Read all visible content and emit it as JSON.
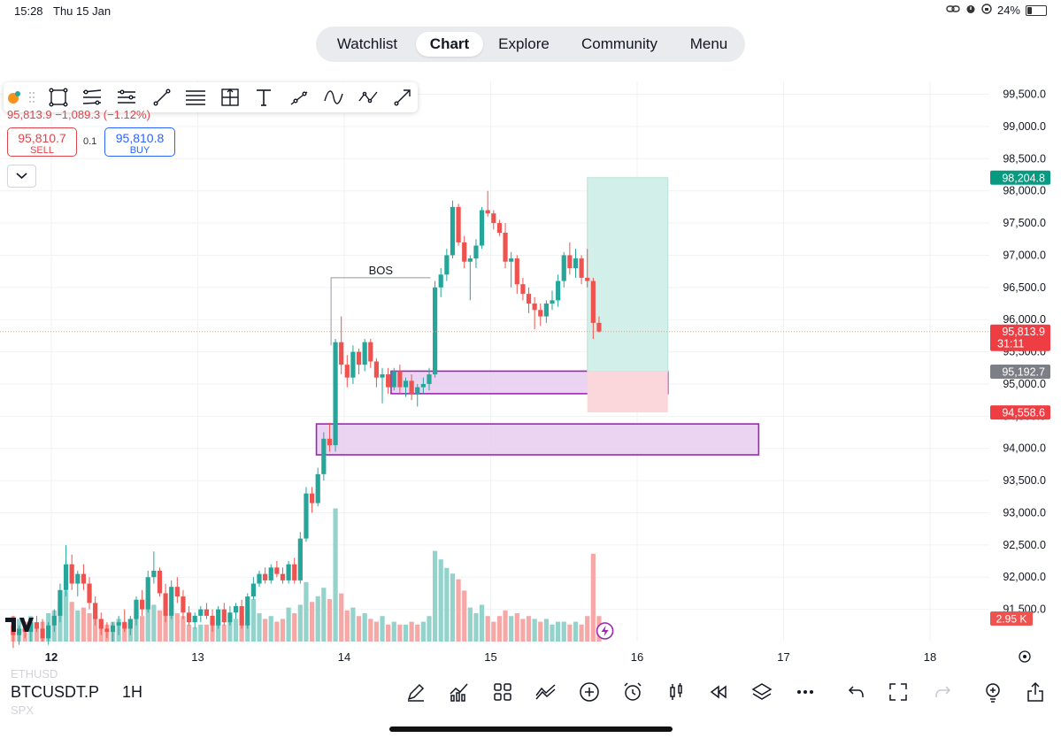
{
  "status_bar": {
    "time": "15:28",
    "date": "Thu 15 Jan",
    "battery": "24%",
    "battery_level": 0.24
  },
  "nav": {
    "tabs": [
      "Watchlist",
      "Chart",
      "Explore",
      "Community",
      "Menu"
    ],
    "active": "Chart"
  },
  "symbol_line": "95,813.9 −1,089.3 (−1.12%)",
  "trade": {
    "sell_value": "95,810.7",
    "sell_label": "SELL",
    "qty": "0.1",
    "buy_value": "95,810.8",
    "buy_label": "BUY"
  },
  "drawing_tools": [
    "trend-line",
    "rectangle",
    "parallel-channel",
    "disjoint-channel",
    "ray",
    "horizontal-lines",
    "fib-box",
    "text",
    "path",
    "curve",
    "polyline",
    "arrow"
  ],
  "bottom": {
    "symbol": "BTCUSDT.P",
    "interval": "1H",
    "faded_symbols": [
      "ETHUSD",
      "SPX"
    ],
    "icons": [
      "pencil-icon",
      "indicators-icon",
      "templates-icon",
      "compare-icon",
      "add-icon",
      "alert-icon",
      "candle-type-icon",
      "replay-icon",
      "layers-icon",
      "more-icon",
      "undo-icon",
      "fullscreen-icon",
      "redo-icon",
      "bulb-icon",
      "share-icon"
    ]
  },
  "colors": {
    "up": "#26a69a",
    "down": "#ef5350",
    "volume_up": "#94d2cc",
    "volume_down": "#f5a8a6",
    "zone_fill": "#e6cdee",
    "zone_stroke": "#9c27b0",
    "target": "#d3efe9",
    "stop": "#fbd7dc"
  },
  "chart_data": {
    "type": "candlestick",
    "y_ticks": [
      91500,
      92000,
      92500,
      93000,
      93500,
      94000,
      94500,
      95000,
      95500,
      96000,
      96500,
      97000,
      97500,
      98000,
      98500,
      99000,
      99500
    ],
    "y_tick_labels": [
      "91,500.0",
      "92,000.0",
      "92,500.0",
      "93,000.0",
      "93,500.0",
      "94,000.0",
      "94,500.0",
      "95,000.0",
      "95,500.0",
      "96,000.0",
      "96,500.0",
      "97,000.0",
      "97,500.0",
      "98,000.0",
      "98,500.0",
      "99,000.0",
      "99,500.0"
    ],
    "ylim": [
      91000,
      99700
    ],
    "x_ticks": [
      12,
      13,
      14,
      15,
      16,
      17,
      18
    ],
    "xlim": [
      11.97,
      18.84
    ],
    "price_labels": [
      {
        "value": 98204.8,
        "text": "98,204.8",
        "color": "#089981"
      },
      {
        "value": 95813.9,
        "text": "95,813.9",
        "sub": "31:11",
        "color": "#ef3e43"
      },
      {
        "value": 95192.7,
        "text": "95,192.7",
        "color": "#7c7f85"
      },
      {
        "value": 94558.6,
        "text": "94,558.6",
        "color": "#ef3e43"
      }
    ],
    "volume_label": "2.95 K",
    "last_price": 95813.9,
    "bos": {
      "label": "BOS",
      "price": 96650,
      "from": 13.91,
      "to": 14.59
    },
    "zones": [
      {
        "from": 14.32,
        "to": 16.21,
        "low": 94850,
        "high": 95200
      },
      {
        "from": 13.81,
        "to": 16.83,
        "low": 93900,
        "high": 94380
      }
    ],
    "position": {
      "from": 15.66,
      "to": 16.21,
      "entry": 95192.7,
      "target": 98204.8,
      "stop": 94558.6
    },
    "candles": [
      [
        11.74,
        91250,
        91400,
        90900,
        91100
      ],
      [
        11.78,
        91100,
        91250,
        90950,
        91200
      ],
      [
        11.82,
        91200,
        91300,
        91050,
        91150
      ],
      [
        11.86,
        91150,
        91350,
        91000,
        91300
      ],
      [
        11.9,
        91300,
        91400,
        91150,
        91200
      ],
      [
        11.94,
        91200,
        91350,
        91000,
        91050
      ],
      [
        11.98,
        91050,
        91300,
        90950,
        91250
      ],
      [
        12.02,
        91250,
        91500,
        91150,
        91400
      ],
      [
        12.06,
        91400,
        91900,
        91300,
        91800
      ],
      [
        12.1,
        91800,
        92500,
        91700,
        92200
      ],
      [
        12.14,
        92200,
        92350,
        91800,
        91900
      ],
      [
        12.18,
        91900,
        92100,
        91700,
        92050
      ],
      [
        12.22,
        92050,
        92200,
        91800,
        91900
      ],
      [
        12.26,
        91900,
        92000,
        91500,
        91600
      ],
      [
        12.3,
        91600,
        91700,
        91250,
        91350
      ],
      [
        12.34,
        91350,
        91450,
        91100,
        91200
      ],
      [
        12.38,
        91200,
        91300,
        91050,
        91150
      ],
      [
        12.42,
        91150,
        91300,
        91000,
        91250
      ],
      [
        12.46,
        91250,
        91400,
        91100,
        91300
      ],
      [
        12.5,
        91300,
        91500,
        91150,
        91200
      ],
      [
        12.54,
        91200,
        91400,
        91100,
        91350
      ],
      [
        12.58,
        91350,
        91700,
        91250,
        91650
      ],
      [
        12.62,
        91650,
        91800,
        91400,
        91500
      ],
      [
        12.66,
        91500,
        92100,
        91450,
        92000
      ],
      [
        12.7,
        92000,
        92400,
        91900,
        92100
      ],
      [
        12.74,
        92100,
        92150,
        91700,
        91750
      ],
      [
        12.78,
        91750,
        91900,
        91300,
        91400
      ],
      [
        12.82,
        91400,
        91950,
        91350,
        91850
      ],
      [
        12.86,
        91850,
        92000,
        91600,
        91700
      ],
      [
        12.9,
        91700,
        91800,
        91350,
        91450
      ],
      [
        12.94,
        91450,
        91550,
        91250,
        91300
      ],
      [
        12.98,
        91300,
        91450,
        91200,
        91400
      ],
      [
        13.02,
        91400,
        91550,
        91300,
        91500
      ],
      [
        13.06,
        91500,
        91600,
        91350,
        91400
      ],
      [
        13.1,
        91400,
        91500,
        91150,
        91250
      ],
      [
        13.14,
        91250,
        91550,
        91200,
        91500
      ],
      [
        13.18,
        91500,
        91600,
        91250,
        91300
      ],
      [
        13.22,
        91300,
        91550,
        91250,
        91450
      ],
      [
        13.26,
        91450,
        91600,
        91350,
        91550
      ],
      [
        13.3,
        91550,
        91650,
        91200,
        91250
      ],
      [
        13.34,
        91250,
        91750,
        91200,
        91700
      ],
      [
        13.38,
        91700,
        92000,
        91650,
        91900
      ],
      [
        13.42,
        91900,
        92100,
        91850,
        92050
      ],
      [
        13.46,
        92050,
        92150,
        91900,
        91950
      ],
      [
        13.5,
        91950,
        92200,
        91900,
        92150
      ],
      [
        13.54,
        92150,
        92250,
        92000,
        92050
      ],
      [
        13.58,
        92050,
        92150,
        91900,
        91950
      ],
      [
        13.62,
        91950,
        92250,
        91900,
        92200
      ],
      [
        13.66,
        92200,
        92300,
        91900,
        91950
      ],
      [
        13.7,
        91950,
        92700,
        91900,
        92600
      ],
      [
        13.74,
        92600,
        93400,
        92550,
        93300
      ],
      [
        13.78,
        93300,
        93400,
        93000,
        93150
      ],
      [
        13.82,
        93150,
        93700,
        93100,
        93600
      ],
      [
        13.86,
        93600,
        94250,
        93500,
        94150
      ],
      [
        13.9,
        94150,
        94400,
        93950,
        94050
      ],
      [
        13.94,
        94050,
        95700,
        93950,
        95650
      ],
      [
        13.98,
        95650,
        96050,
        95150,
        95300
      ],
      [
        14.02,
        95300,
        95450,
        94950,
        95100
      ],
      [
        14.06,
        95100,
        95600,
        95000,
        95500
      ],
      [
        14.1,
        95500,
        95550,
        95150,
        95300
      ],
      [
        14.14,
        95300,
        95700,
        95200,
        95650
      ],
      [
        14.18,
        95650,
        95700,
        95250,
        95350
      ],
      [
        14.22,
        95350,
        95400,
        94950,
        95100
      ],
      [
        14.26,
        95100,
        95250,
        94700,
        95150
      ],
      [
        14.3,
        95150,
        95250,
        94850,
        94950
      ],
      [
        14.34,
        94950,
        95250,
        94900,
        95200
      ],
      [
        14.38,
        95200,
        95300,
        94850,
        94950
      ],
      [
        14.42,
        94950,
        95100,
        94800,
        95050
      ],
      [
        14.46,
        95050,
        95150,
        94750,
        94850
      ],
      [
        14.5,
        94850,
        95000,
        94650,
        94950
      ],
      [
        14.54,
        94950,
        95100,
        94850,
        95000
      ],
      [
        14.58,
        95000,
        95250,
        94900,
        95150
      ],
      [
        14.62,
        95150,
        96600,
        95100,
        96500
      ],
      [
        14.66,
        96500,
        96800,
        96350,
        96700
      ],
      [
        14.7,
        96700,
        97100,
        96600,
        97000
      ],
      [
        14.74,
        97000,
        97850,
        96950,
        97750
      ],
      [
        14.78,
        97750,
        97800,
        97150,
        97200
      ],
      [
        14.82,
        97200,
        97300,
        96800,
        96900
      ],
      [
        14.86,
        96900,
        97000,
        96300,
        96950
      ],
      [
        14.9,
        96950,
        97250,
        96800,
        97150
      ],
      [
        14.94,
        97150,
        97750,
        97100,
        97700
      ],
      [
        14.98,
        97700,
        98000,
        97600,
        97650
      ],
      [
        15.02,
        97650,
        97700,
        97400,
        97500
      ],
      [
        15.06,
        97500,
        97550,
        97300,
        97350
      ],
      [
        15.1,
        97350,
        97500,
        96800,
        96900
      ],
      [
        15.14,
        96900,
        97050,
        96500,
        96950
      ],
      [
        15.18,
        96950,
        97000,
        96400,
        96550
      ],
      [
        15.22,
        96550,
        96650,
        96300,
        96400
      ],
      [
        15.26,
        96400,
        96500,
        96100,
        96250
      ],
      [
        15.3,
        96250,
        96350,
        95850,
        96150
      ],
      [
        15.34,
        96150,
        96250,
        95900,
        96050
      ],
      [
        15.38,
        96050,
        96300,
        95950,
        96250
      ],
      [
        15.42,
        96250,
        96450,
        96150,
        96300
      ],
      [
        15.46,
        96300,
        96700,
        96200,
        96600
      ],
      [
        15.5,
        96600,
        97050,
        96500,
        97000
      ],
      [
        15.54,
        97000,
        97200,
        96700,
        96800
      ],
      [
        15.58,
        96800,
        97100,
        96650,
        96950
      ],
      [
        15.62,
        96950,
        97000,
        96550,
        96650
      ],
      [
        15.66,
        96650,
        97100,
        96500,
        96600
      ],
      [
        15.7,
        96600,
        96650,
        95700,
        95950
      ],
      [
        15.74,
        95950,
        96050,
        95800,
        95813.9
      ]
    ],
    "volumes": [
      [
        11.74,
        0.9,
        0
      ],
      [
        11.78,
        0.8,
        1
      ],
      [
        11.82,
        0.7,
        0
      ],
      [
        11.86,
        0.9,
        1
      ],
      [
        11.9,
        0.6,
        0
      ],
      [
        11.94,
        0.7,
        0
      ],
      [
        11.98,
        1.0,
        1
      ],
      [
        12.02,
        1.1,
        1
      ],
      [
        12.06,
        1.4,
        1
      ],
      [
        12.1,
        1.8,
        1
      ],
      [
        12.14,
        1.4,
        0
      ],
      [
        12.18,
        1.1,
        1
      ],
      [
        12.22,
        1.2,
        0
      ],
      [
        12.26,
        1.0,
        0
      ],
      [
        12.3,
        0.9,
        0
      ],
      [
        12.34,
        0.8,
        0
      ],
      [
        12.38,
        0.6,
        0
      ],
      [
        12.42,
        0.7,
        1
      ],
      [
        12.46,
        0.8,
        1
      ],
      [
        12.5,
        0.7,
        0
      ],
      [
        12.54,
        0.8,
        1
      ],
      [
        12.58,
        1.2,
        1
      ],
      [
        12.62,
        0.9,
        0
      ],
      [
        12.66,
        1.6,
        1
      ],
      [
        12.7,
        1.3,
        1
      ],
      [
        12.74,
        1.1,
        0
      ],
      [
        12.78,
        1.0,
        0
      ],
      [
        12.82,
        1.3,
        1
      ],
      [
        12.86,
        1.0,
        0
      ],
      [
        12.9,
        0.9,
        0
      ],
      [
        12.94,
        0.6,
        0
      ],
      [
        12.98,
        0.5,
        1
      ],
      [
        13.02,
        0.6,
        1
      ],
      [
        13.06,
        0.6,
        0
      ],
      [
        13.1,
        0.8,
        0
      ],
      [
        13.14,
        0.7,
        1
      ],
      [
        13.18,
        0.6,
        0
      ],
      [
        13.22,
        0.7,
        1
      ],
      [
        13.26,
        0.8,
        1
      ],
      [
        13.3,
        0.9,
        0
      ],
      [
        13.34,
        1.1,
        1
      ],
      [
        13.38,
        1.5,
        1
      ],
      [
        13.42,
        1.0,
        1
      ],
      [
        13.46,
        0.8,
        0
      ],
      [
        13.5,
        0.9,
        1
      ],
      [
        13.54,
        0.7,
        0
      ],
      [
        13.58,
        0.8,
        0
      ],
      [
        13.62,
        1.2,
        1
      ],
      [
        13.66,
        1.0,
        0
      ],
      [
        13.7,
        1.3,
        1
      ],
      [
        13.74,
        2.1,
        1
      ],
      [
        13.78,
        1.4,
        0
      ],
      [
        13.82,
        1.6,
        1
      ],
      [
        13.86,
        1.9,
        1
      ],
      [
        13.9,
        1.5,
        0
      ],
      [
        13.94,
        4.7,
        1
      ],
      [
        13.98,
        1.7,
        0
      ],
      [
        14.02,
        1.1,
        0
      ],
      [
        14.06,
        1.2,
        1
      ],
      [
        14.1,
        0.9,
        0
      ],
      [
        14.14,
        1.0,
        1
      ],
      [
        14.18,
        0.8,
        0
      ],
      [
        14.22,
        0.7,
        0
      ],
      [
        14.26,
        0.9,
        1
      ],
      [
        14.3,
        0.6,
        0
      ],
      [
        14.34,
        0.7,
        1
      ],
      [
        14.38,
        0.6,
        0
      ],
      [
        14.42,
        0.6,
        1
      ],
      [
        14.46,
        0.7,
        0
      ],
      [
        14.5,
        0.6,
        0
      ],
      [
        14.54,
        0.7,
        1
      ],
      [
        14.58,
        0.9,
        1
      ],
      [
        14.62,
        3.2,
        1
      ],
      [
        14.66,
        2.9,
        1
      ],
      [
        14.7,
        2.6,
        1
      ],
      [
        14.74,
        2.4,
        1
      ],
      [
        14.78,
        2.2,
        0
      ],
      [
        14.82,
        1.8,
        0
      ],
      [
        14.86,
        1.2,
        1
      ],
      [
        14.9,
        1.0,
        1
      ],
      [
        14.94,
        1.3,
        1
      ],
      [
        14.98,
        0.9,
        0
      ],
      [
        15.02,
        0.7,
        0
      ],
      [
        15.06,
        0.9,
        0
      ],
      [
        15.1,
        1.1,
        0
      ],
      [
        15.14,
        0.9,
        1
      ],
      [
        15.18,
        1.0,
        0
      ],
      [
        15.22,
        0.8,
        0
      ],
      [
        15.26,
        0.9,
        0
      ],
      [
        15.3,
        0.8,
        1
      ],
      [
        15.34,
        0.7,
        0
      ],
      [
        15.38,
        0.8,
        1
      ],
      [
        15.42,
        0.6,
        1
      ],
      [
        15.46,
        0.7,
        1
      ],
      [
        15.5,
        0.7,
        1
      ],
      [
        15.54,
        0.6,
        0
      ],
      [
        15.58,
        0.7,
        1
      ],
      [
        15.62,
        0.6,
        0
      ],
      [
        15.66,
        0.9,
        0
      ],
      [
        15.7,
        3.1,
        0
      ],
      [
        15.74,
        0.9,
        0
      ]
    ]
  }
}
